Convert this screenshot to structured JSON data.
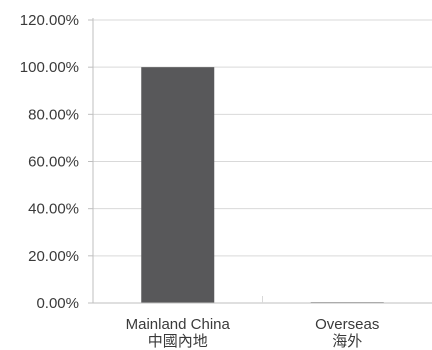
{
  "chart_data": {
    "type": "bar",
    "categories": [
      {
        "label": "Mainland China",
        "sublabel": "中國內地"
      },
      {
        "label": "Overseas",
        "sublabel": "海外"
      }
    ],
    "values": [
      100,
      0
    ],
    "ylim": [
      0,
      120
    ],
    "yticks": [
      "0.00%",
      "20.00%",
      "40.00%",
      "60.00%",
      "80.00%",
      "100.00%",
      "120.00%"
    ],
    "grid": true,
    "bar_color": "#58585a",
    "grid_color": "#d9d9d9",
    "axis_color": "#bfbfbf"
  }
}
